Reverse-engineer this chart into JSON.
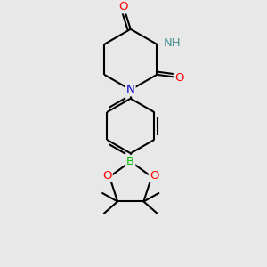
{
  "bg_color": "#e8e8e8",
  "atom_colors": {
    "C": "#000000",
    "N": "#0000cd",
    "O": "#ff0000",
    "B": "#00bb00",
    "H": "#4a9090"
  },
  "bond_color": "#000000",
  "bond_width": 1.5,
  "fig_size": [
    3.0,
    3.0
  ],
  "dpi": 100
}
